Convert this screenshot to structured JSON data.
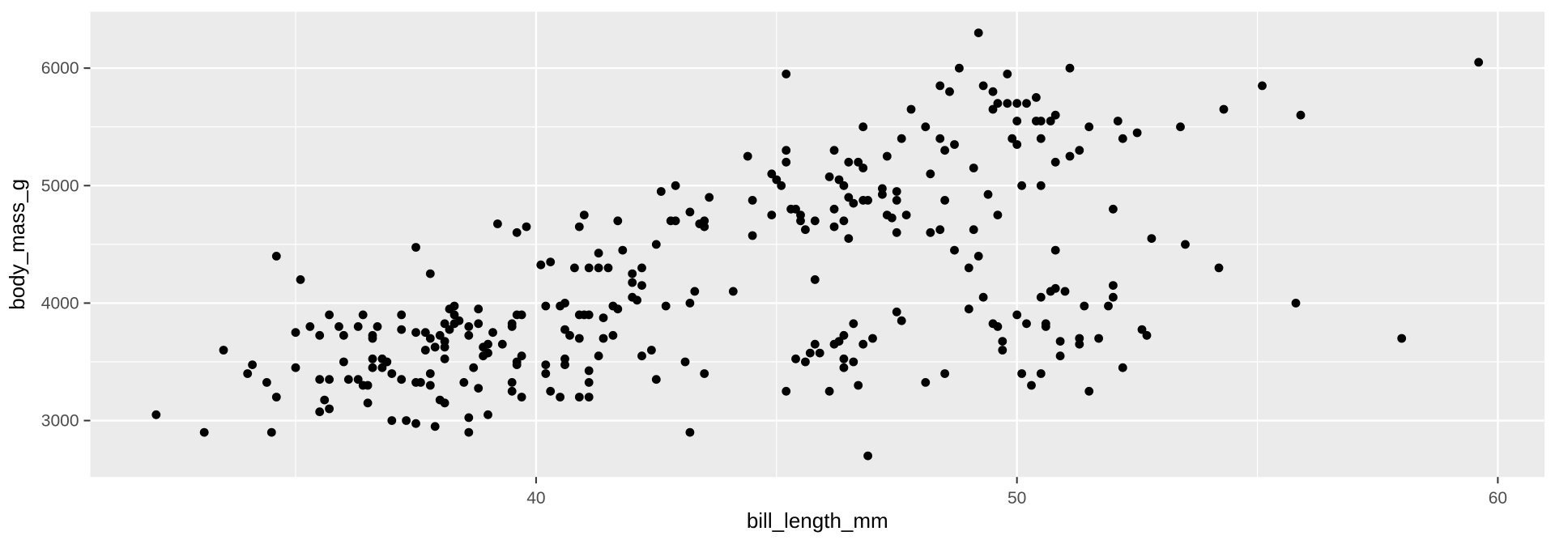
{
  "chart_data": {
    "type": "scatter",
    "title": "",
    "xlabel": "bill_length_mm",
    "ylabel": "body_mass_g",
    "x_ticks": [
      40,
      50,
      60
    ],
    "x_minor_gridlines": [
      35,
      45,
      55
    ],
    "y_ticks": [
      3000,
      4000,
      5000,
      6000
    ],
    "y_minor_gridlines": [
      3500,
      4500,
      5500
    ],
    "xlim": [
      30.73,
      60.97
    ],
    "ylim": [
      2520,
      6480
    ],
    "grid": "on",
    "legend_position": "none",
    "colors": {
      "panel_bg": "#EBEBEB",
      "grid": "#FFFFFF",
      "point": "#000000",
      "tick_text": "#4D4D4D",
      "tick_mark": "#333333",
      "axis_title": "#000000",
      "figure_bg": "#FFFFFF"
    },
    "points": [
      [
        45.2,
        5950
      ],
      [
        44.4,
        5250
      ],
      [
        45.2,
        5300
      ],
      [
        45.2,
        5200
      ],
      [
        44.9,
        5100
      ],
      [
        49.2,
        6300
      ],
      [
        48.8,
        6000
      ],
      [
        49.8,
        5950
      ],
      [
        51.1,
        6000
      ],
      [
        48.4,
        5850
      ],
      [
        48.6,
        5800
      ],
      [
        49.3,
        5850
      ],
      [
        49.5,
        5800
      ],
      [
        47.8,
        5650
      ],
      [
        49.6,
        5700
      ],
      [
        49.8,
        5700
      ],
      [
        50.0,
        5700
      ],
      [
        50.2,
        5700
      ],
      [
        50.4,
        5750
      ],
      [
        49.5,
        5650
      ],
      [
        50.0,
        5550
      ],
      [
        50.4,
        5550
      ],
      [
        50.5,
        5550
      ],
      [
        50.7,
        5550
      ],
      [
        50.8,
        5600
      ],
      [
        46.8,
        5500
      ],
      [
        48.1,
        5500
      ],
      [
        47.6,
        5400
      ],
      [
        48.4,
        5400
      ],
      [
        48.5,
        5300
      ],
      [
        48.7,
        5350
      ],
      [
        46.2,
        5300
      ],
      [
        46.5,
        5200
      ],
      [
        46.7,
        5200
      ],
      [
        46.8,
        5150
      ],
      [
        47.3,
        5250
      ],
      [
        48.2,
        5100
      ],
      [
        49.1,
        5150
      ],
      [
        49.9,
        5400
      ],
      [
        50.0,
        5350
      ],
      [
        50.5,
        5400
      ],
      [
        50.8,
        5200
      ],
      [
        51.1,
        5250
      ],
      [
        51.3,
        5300
      ],
      [
        51.5,
        5500
      ],
      [
        52.1,
        5550
      ],
      [
        52.2,
        5400
      ],
      [
        52.5,
        5450
      ],
      [
        53.4,
        5500
      ],
      [
        59.6,
        6050
      ],
      [
        55.1,
        5850
      ],
      [
        54.3,
        5650
      ],
      [
        55.9,
        5600
      ],
      [
        34.6,
        4400
      ],
      [
        35.1,
        4200
      ],
      [
        37.5,
        4475
      ],
      [
        37.8,
        4250
      ],
      [
        37.2,
        3900
      ],
      [
        35.0,
        3750
      ],
      [
        35.3,
        3800
      ],
      [
        35.9,
        3800
      ],
      [
        36.3,
        3800
      ],
      [
        36.7,
        3800
      ],
      [
        37.2,
        3775
      ],
      [
        38.1,
        3825
      ],
      [
        38.2,
        3950
      ],
      [
        38.2,
        3775
      ],
      [
        37.5,
        3750
      ],
      [
        37.7,
        3750
      ],
      [
        38.3,
        3975
      ],
      [
        38.3,
        3900
      ],
      [
        38.3,
        3825
      ],
      [
        45.0,
        5050
      ],
      [
        45.1,
        5000
      ],
      [
        42.6,
        4950
      ],
      [
        42.9,
        5000
      ],
      [
        43.6,
        4900
      ],
      [
        44.5,
        4875
      ],
      [
        43.2,
        4775
      ],
      [
        41.0,
        4750
      ],
      [
        40.9,
        4650
      ],
      [
        41.7,
        4700
      ],
      [
        43.5,
        4700
      ],
      [
        43.4,
        4675
      ],
      [
        43.5,
        4650
      ],
      [
        42.9,
        4700
      ],
      [
        42.8,
        4700
      ],
      [
        44.9,
        4750
      ],
      [
        45.3,
        4800
      ],
      [
        45.4,
        4800
      ],
      [
        45.5,
        4750
      ],
      [
        45.5,
        4700
      ],
      [
        45.6,
        4625
      ],
      [
        45.8,
        4700
      ],
      [
        44.5,
        4575
      ],
      [
        42.5,
        4500
      ],
      [
        41.8,
        4450
      ],
      [
        41.3,
        4425
      ],
      [
        41.5,
        4300
      ],
      [
        41.3,
        4300
      ],
      [
        40.8,
        4300
      ],
      [
        41.1,
        4300
      ],
      [
        40.1,
        4325
      ],
      [
        40.3,
        4350
      ],
      [
        42.0,
        4250
      ],
      [
        42.2,
        4300
      ],
      [
        42.2,
        4150
      ],
      [
        42.0,
        4175
      ],
      [
        42.0,
        4050
      ],
      [
        42.1,
        4025
      ],
      [
        40.6,
        4000
      ],
      [
        40.5,
        3975
      ],
      [
        40.2,
        3975
      ],
      [
        43.3,
        4100
      ],
      [
        43.2,
        4000
      ],
      [
        44.1,
        4100
      ],
      [
        42.7,
        3975
      ],
      [
        45.8,
        4200
      ],
      [
        38.8,
        3950
      ],
      [
        38.4,
        3850
      ],
      [
        38.8,
        3825
      ],
      [
        39.1,
        3750
      ],
      [
        39.5,
        3825
      ],
      [
        39.6,
        3900
      ],
      [
        39.7,
        3900
      ],
      [
        40.6,
        3775
      ],
      [
        40.7,
        3725
      ],
      [
        40.9,
        3900
      ],
      [
        41.0,
        3900
      ],
      [
        41.1,
        3900
      ],
      [
        41.4,
        3875
      ],
      [
        41.6,
        3975
      ],
      [
        41.7,
        3950
      ],
      [
        39.2,
        4675
      ],
      [
        39.6,
        4600
      ],
      [
        39.8,
        4650
      ],
      [
        46.1,
        5075
      ],
      [
        46.3,
        5050
      ],
      [
        46.4,
        5000
      ],
      [
        46.5,
        4900
      ],
      [
        46.6,
        4850
      ],
      [
        46.8,
        4875
      ],
      [
        46.9,
        4875
      ],
      [
        47.2,
        4975
      ],
      [
        47.2,
        4925
      ],
      [
        47.5,
        4950
      ],
      [
        47.5,
        4875
      ],
      [
        46.2,
        4800
      ],
      [
        46.4,
        4700
      ],
      [
        46.2,
        4650
      ],
      [
        46.5,
        4550
      ],
      [
        47.3,
        4750
      ],
      [
        47.4,
        4725
      ],
      [
        47.7,
        4750
      ],
      [
        47.5,
        4600
      ],
      [
        48.2,
        4600
      ],
      [
        48.4,
        4625
      ],
      [
        48.5,
        4875
      ],
      [
        49.4,
        4925
      ],
      [
        49.6,
        4750
      ],
      [
        49.1,
        4625
      ],
      [
        48.7,
        4450
      ],
      [
        49.2,
        4400
      ],
      [
        49.0,
        4300
      ],
      [
        49.3,
        4050
      ],
      [
        49.0,
        3950
      ],
      [
        50.1,
        5000
      ],
      [
        50.5,
        5000
      ],
      [
        50.8,
        4450
      ],
      [
        52.0,
        4800
      ],
      [
        52.8,
        4550
      ],
      [
        53.5,
        4500
      ],
      [
        50.5,
        4050
      ],
      [
        50.7,
        4100
      ],
      [
        50.8,
        4125
      ],
      [
        51.0,
        4100
      ],
      [
        52.0,
        4150
      ],
      [
        52.0,
        4050
      ],
      [
        51.4,
        3975
      ],
      [
        51.9,
        3975
      ],
      [
        50.0,
        3900
      ],
      [
        49.5,
        3825
      ],
      [
        50.2,
        3825
      ],
      [
        50.6,
        3825
      ],
      [
        50.6,
        3800
      ],
      [
        49.6,
        3800
      ],
      [
        47.5,
        3925
      ],
      [
        47.6,
        3850
      ],
      [
        46.6,
        3825
      ],
      [
        52.6,
        3775
      ],
      [
        54.2,
        4300
      ],
      [
        55.8,
        4000
      ],
      [
        33.5,
        3600
      ],
      [
        34.1,
        3475
      ],
      [
        34.0,
        3400
      ],
      [
        34.4,
        3325
      ],
      [
        34.6,
        3200
      ],
      [
        32.1,
        3050
      ],
      [
        33.1,
        2900
      ],
      [
        34.5,
        2900
      ],
      [
        35.0,
        3450
      ],
      [
        35.5,
        3350
      ],
      [
        35.7,
        3350
      ],
      [
        35.6,
        3175
      ],
      [
        35.7,
        3100
      ],
      [
        35.5,
        3075
      ],
      [
        36.0,
        3500
      ],
      [
        36.6,
        3525
      ],
      [
        36.8,
        3525
      ],
      [
        36.9,
        3500
      ],
      [
        36.6,
        3450
      ],
      [
        36.8,
        3450
      ],
      [
        36.1,
        3350
      ],
      [
        36.3,
        3350
      ],
      [
        36.4,
        3300
      ],
      [
        36.5,
        3300
      ],
      [
        37.0,
        3400
      ],
      [
        37.2,
        3350
      ],
      [
        37.5,
        3325
      ],
      [
        37.6,
        3325
      ],
      [
        37.8,
        3300
      ],
      [
        37.0,
        3000
      ],
      [
        37.3,
        3000
      ],
      [
        37.5,
        2975
      ],
      [
        37.9,
        2950
      ],
      [
        38.0,
        3725
      ],
      [
        37.9,
        3625
      ],
      [
        38.1,
        3675
      ],
      [
        38.1,
        3625
      ],
      [
        37.7,
        3600
      ],
      [
        38.1,
        3525
      ],
      [
        38.0,
        3175
      ],
      [
        38.1,
        3150
      ],
      [
        38.6,
        3025
      ],
      [
        35.5,
        3725
      ],
      [
        36.0,
        3725
      ],
      [
        36.6,
        3725
      ],
      [
        38.6,
        3725
      ],
      [
        40.9,
        3700
      ],
      [
        41.4,
        3700
      ],
      [
        39.0,
        3650
      ],
      [
        38.9,
        3625
      ],
      [
        39.0,
        3575
      ],
      [
        38.9,
        3550
      ],
      [
        39.3,
        3650
      ],
      [
        39.6,
        3500
      ],
      [
        39.7,
        3550
      ],
      [
        39.6,
        3475
      ],
      [
        38.7,
        3450
      ],
      [
        38.5,
        3325
      ],
      [
        38.8,
        3275
      ],
      [
        39.5,
        3325
      ],
      [
        39.5,
        3250
      ],
      [
        39.7,
        3200
      ],
      [
        39.0,
        3050
      ],
      [
        38.6,
        2900
      ],
      [
        40.2,
        3475
      ],
      [
        40.2,
        3400
      ],
      [
        40.6,
        3525
      ],
      [
        40.6,
        3475
      ],
      [
        40.3,
        3250
      ],
      [
        40.5,
        3200
      ],
      [
        40.9,
        3200
      ],
      [
        41.1,
        3200
      ],
      [
        41.1,
        3425
      ],
      [
        41.1,
        3325
      ],
      [
        41.3,
        3550
      ],
      [
        42.2,
        3550
      ],
      [
        42.4,
        3600
      ],
      [
        42.5,
        3350
      ],
      [
        43.1,
        3500
      ],
      [
        43.5,
        3400
      ],
      [
        43.2,
        2900
      ],
      [
        45.2,
        3250
      ],
      [
        45.4,
        3525
      ],
      [
        45.6,
        3500
      ],
      [
        45.7,
        3575
      ],
      [
        45.8,
        3650
      ],
      [
        45.9,
        3575
      ],
      [
        46.4,
        3725
      ],
      [
        47.0,
        3700
      ],
      [
        46.2,
        3650
      ],
      [
        46.3,
        3675
      ],
      [
        46.8,
        3650
      ],
      [
        46.4,
        3525
      ],
      [
        46.4,
        3450
      ],
      [
        48.5,
        3400
      ],
      [
        48.1,
        3325
      ],
      [
        46.7,
        3300
      ],
      [
        46.1,
        3250
      ],
      [
        46.9,
        2700
      ],
      [
        49.7,
        3675
      ],
      [
        49.7,
        3600
      ],
      [
        50.1,
        3400
      ],
      [
        50.5,
        3400
      ],
      [
        50.3,
        3300
      ],
      [
        50.9,
        3675
      ],
      [
        51.3,
        3700
      ],
      [
        51.3,
        3650
      ],
      [
        50.9,
        3550
      ],
      [
        51.7,
        3700
      ],
      [
        52.2,
        3450
      ],
      [
        51.5,
        3250
      ],
      [
        52.7,
        3725
      ],
      [
        58.0,
        3700
      ],
      [
        39.5,
        3800
      ],
      [
        37.8,
        3700
      ],
      [
        38.6,
        3800
      ],
      [
        36.6,
        3700
      ],
      [
        37.8,
        3400
      ],
      [
        36.5,
        3150
      ],
      [
        36.4,
        3900
      ],
      [
        41.6,
        3725
      ],
      [
        35.7,
        3900
      ],
      [
        46.6,
        3500
      ]
    ]
  }
}
